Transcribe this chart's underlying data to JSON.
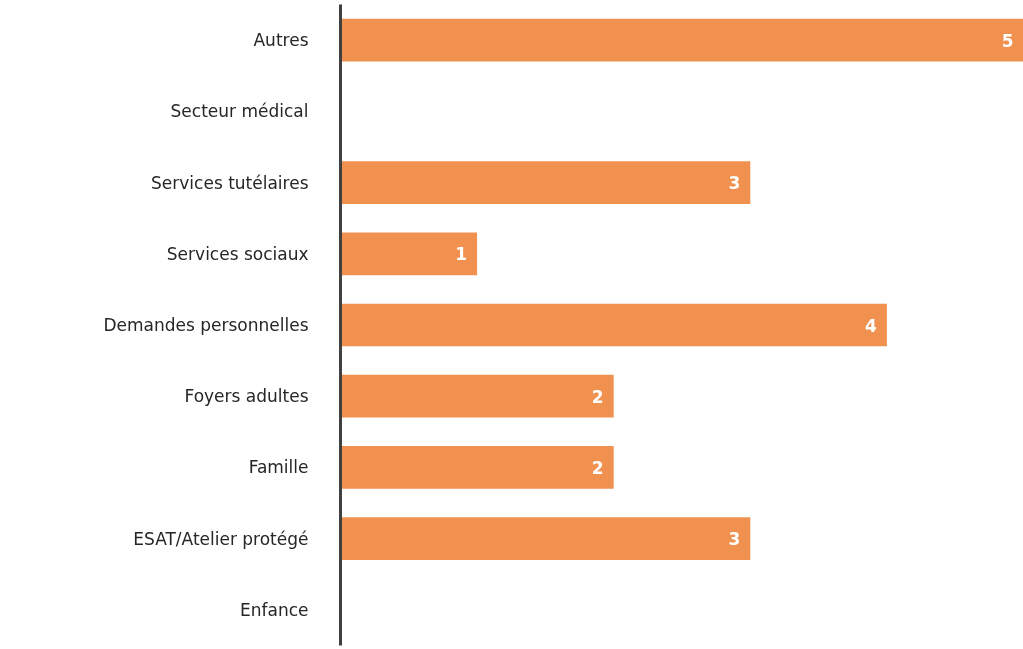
{
  "chart_data": {
    "type": "bar",
    "orientation": "horizontal",
    "categories": [
      "Autres",
      "Secteur médical",
      "Services tutélaires",
      "Services sociaux",
      "Demandes personnelles",
      "Foyers adultes",
      "Famille",
      "ESAT/Atelier protégé",
      "Enfance"
    ],
    "values": [
      5,
      0,
      3,
      1,
      4,
      2,
      2,
      3,
      0
    ],
    "value_labels": [
      "5",
      null,
      "3",
      "1",
      "4",
      "2",
      "2",
      "3",
      null
    ],
    "color": "#f0914f"
  }
}
